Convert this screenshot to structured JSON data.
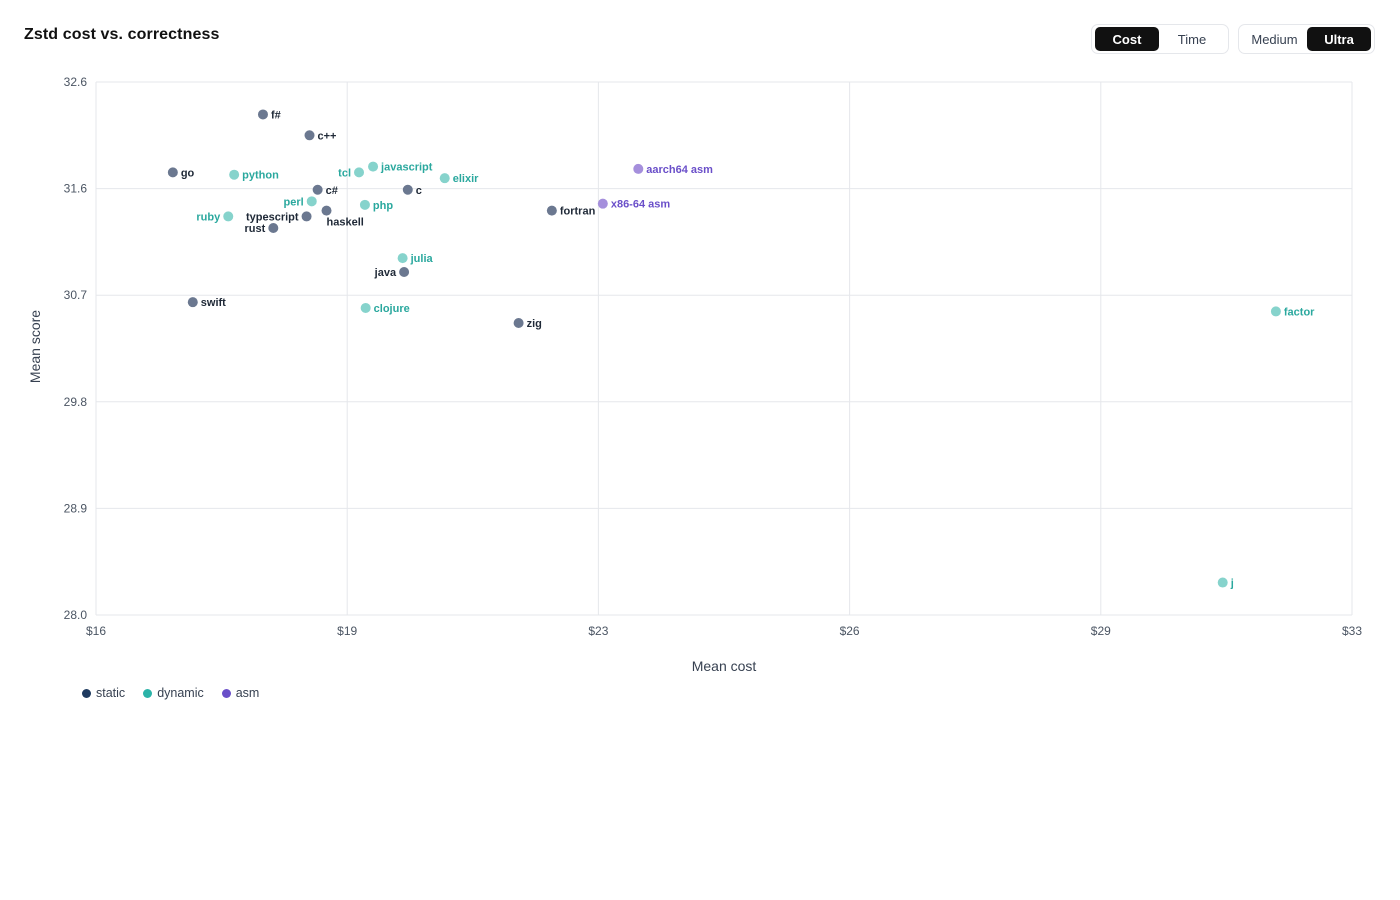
{
  "title": "Zstd cost vs. correctness",
  "controls": {
    "metric": [
      {
        "label": "Cost",
        "active": true
      },
      {
        "label": "Time",
        "active": false
      }
    ],
    "level": [
      {
        "label": "Medium",
        "active": false
      },
      {
        "label": "Ultra",
        "active": true
      }
    ]
  },
  "legend": [
    {
      "name": "static",
      "color": "#1e3a5f"
    },
    {
      "name": "dynamic",
      "color": "#2bb3a8"
    },
    {
      "name": "asm",
      "color": "#6a4fc9"
    }
  ],
  "chart_data": {
    "type": "scatter",
    "title": "Zstd cost vs. correctness",
    "xlabel": "Mean cost",
    "ylabel": "Mean score",
    "xlim": [
      16,
      33
    ],
    "ylim": [
      28.0,
      32.6
    ],
    "x_ticks": [
      "$16",
      "$19",
      "$23",
      "$26",
      "$29",
      "$33"
    ],
    "y_ticks": [
      "32.6",
      "31.6",
      "30.7",
      "29.8",
      "28.9",
      "28.0"
    ],
    "grid": true,
    "legend_position": "bottom-left",
    "series": [
      {
        "name": "static",
        "color": "#6b7890",
        "label_color": "#1f2937",
        "points": [
          {
            "label": "f#",
            "x": 18.26,
            "y": 32.32
          },
          {
            "label": "c++",
            "x": 18.89,
            "y": 32.14
          },
          {
            "label": "go",
            "x": 17.04,
            "y": 31.82
          },
          {
            "label": "c#",
            "x": 19.0,
            "y": 31.67
          },
          {
            "label": "c",
            "x": 20.22,
            "y": 31.67
          },
          {
            "label": "typescript",
            "x": 18.85,
            "y": 31.44
          },
          {
            "label": "haskell",
            "x": 19.12,
            "y": 31.49
          },
          {
            "label": "rust",
            "x": 18.4,
            "y": 31.34
          },
          {
            "label": "fortran",
            "x": 22.17,
            "y": 31.49
          },
          {
            "label": "java",
            "x": 20.17,
            "y": 30.96
          },
          {
            "label": "swift",
            "x": 17.31,
            "y": 30.7
          },
          {
            "label": "zig",
            "x": 21.72,
            "y": 30.52
          }
        ]
      },
      {
        "name": "dynamic",
        "color": "#86d3cc",
        "label_color": "#2aa89e",
        "points": [
          {
            "label": "python",
            "x": 17.87,
            "y": 31.8
          },
          {
            "label": "tcl",
            "x": 19.56,
            "y": 31.82
          },
          {
            "label": "javascript",
            "x": 19.75,
            "y": 31.87
          },
          {
            "label": "elixir",
            "x": 20.72,
            "y": 31.77
          },
          {
            "label": "perl",
            "x": 18.92,
            "y": 31.57
          },
          {
            "label": "php",
            "x": 19.64,
            "y": 31.54
          },
          {
            "label": "ruby",
            "x": 17.79,
            "y": 31.44
          },
          {
            "label": "julia",
            "x": 20.15,
            "y": 31.08
          },
          {
            "label": "clojure",
            "x": 19.65,
            "y": 30.65
          },
          {
            "label": "factor",
            "x": 31.97,
            "y": 30.62
          },
          {
            "label": "j",
            "x": 31.25,
            "y": 28.28
          }
        ]
      },
      {
        "name": "asm",
        "color": "#a58fdc",
        "label_color": "#6a4fc9",
        "points": [
          {
            "label": "aarch64 asm",
            "x": 23.34,
            "y": 31.85
          },
          {
            "label": "x86-64 asm",
            "x": 22.86,
            "y": 31.55
          }
        ]
      }
    ]
  }
}
